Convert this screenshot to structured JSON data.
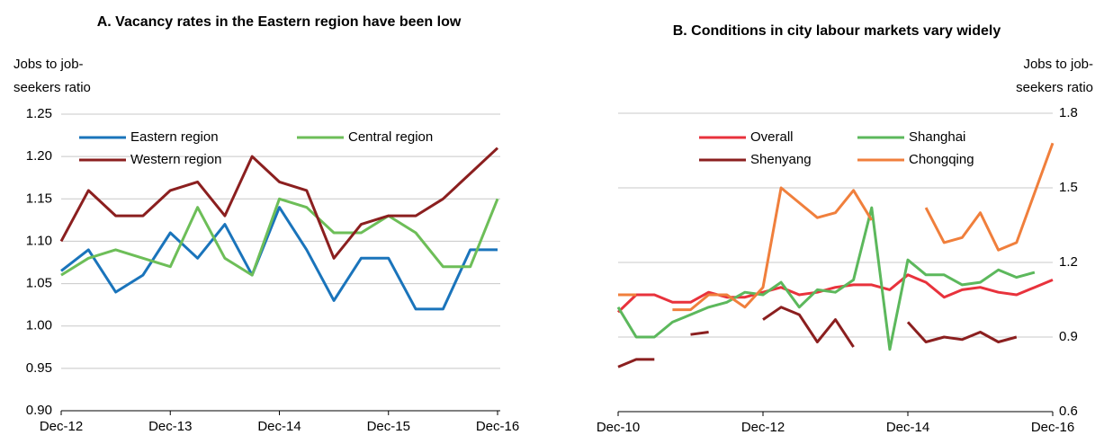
{
  "chart_data": [
    {
      "type": "line",
      "title": "A. Vacancy rates in the Eastern region have been low",
      "y_label": [
        "Jobs to job-",
        "seekers ratio"
      ],
      "y_axis_side": "left",
      "legend": "top-left",
      "grid": true,
      "categories": [
        "Dec-12",
        null,
        null,
        null,
        "Dec-13",
        null,
        null,
        null,
        "Dec-14",
        null,
        null,
        null,
        "Dec-15",
        null,
        null,
        null,
        "Dec-16"
      ],
      "ylim": [
        0.9,
        1.25
      ],
      "yticks": [
        {
          "value": 0.9,
          "label": "0.90"
        },
        0.95,
        {
          "value": 1.0,
          "label": "1.00"
        },
        1.05,
        {
          "value": 1.1,
          "label": "1.10"
        },
        1.15,
        {
          "value": 1.2,
          "label": "1.20"
        },
        1.25
      ],
      "series": [
        {
          "name": "Eastern region",
          "color": "#1a74bb",
          "values": [
            1.065,
            1.09,
            1.04,
            1.06,
            1.11,
            1.08,
            1.12,
            1.06,
            1.14,
            1.09,
            1.03,
            1.08,
            1.08,
            1.02,
            1.02,
            1.09,
            1.09
          ]
        },
        {
          "name": "Central region",
          "color": "#6dbe58",
          "values": [
            1.06,
            1.08,
            1.09,
            1.08,
            1.07,
            1.14,
            1.08,
            1.06,
            1.15,
            1.14,
            1.11,
            1.11,
            1.13,
            1.11,
            1.07,
            1.07,
            1.15
          ]
        },
        {
          "name": "Western region",
          "color": "#8b1f1f",
          "values": [
            1.1,
            1.16,
            1.13,
            1.13,
            1.16,
            1.17,
            1.13,
            1.2,
            1.17,
            1.16,
            1.08,
            1.12,
            1.13,
            1.13,
            1.15,
            1.18,
            1.21
          ]
        }
      ]
    },
    {
      "type": "line",
      "title": "B. Conditions in city labour markets vary widely",
      "y_label": [
        "Jobs to job-",
        "seekers ratio"
      ],
      "y_axis_side": "right",
      "legend": "top-left",
      "grid": true,
      "categories": [
        "Dec-10",
        null,
        null,
        null,
        null,
        null,
        null,
        null,
        "Dec-12",
        null,
        null,
        null,
        null,
        null,
        null,
        null,
        "Dec-14",
        null,
        null,
        null,
        null,
        null,
        null,
        null,
        "Dec-16"
      ],
      "ylim": [
        0.6,
        1.8
      ],
      "yticks": [
        0.6,
        0.9,
        1.2,
        1.5,
        1.8
      ],
      "series": [
        {
          "name": "Overall",
          "color": "#e8323c",
          "values": [
            1.0,
            1.07,
            1.07,
            1.04,
            1.04,
            1.08,
            1.06,
            1.06,
            1.08,
            1.1,
            1.07,
            1.08,
            1.1,
            1.11,
            1.11,
            1.09,
            1.15,
            1.12,
            1.06,
            1.09,
            1.1,
            1.08,
            1.07,
            1.1,
            1.13
          ]
        },
        {
          "name": "Shanghai",
          "color": "#5cb85c",
          "values": [
            1.02,
            0.9,
            0.9,
            0.96,
            0.99,
            1.02,
            1.04,
            1.08,
            1.07,
            1.12,
            1.02,
            1.09,
            1.08,
            1.13,
            1.42,
            0.85,
            1.21,
            1.15,
            1.15,
            1.11,
            1.12,
            1.17,
            1.14,
            1.16,
            null
          ]
        },
        {
          "name": "Shenyang",
          "color": "#8b1f1f",
          "values": [
            0.78,
            0.81,
            0.81,
            null,
            0.91,
            0.92,
            null,
            null,
            0.97,
            1.02,
            0.99,
            0.88,
            0.97,
            0.86,
            null,
            null,
            0.96,
            0.88,
            0.9,
            0.89,
            0.92,
            0.88,
            0.9,
            null,
            null
          ]
        },
        {
          "name": "Chongqing",
          "color": "#f07f3c",
          "values": [
            1.07,
            1.07,
            null,
            1.01,
            1.01,
            1.07,
            1.07,
            1.02,
            1.1,
            1.5,
            1.44,
            1.38,
            1.4,
            1.49,
            1.37,
            null,
            null,
            1.42,
            1.28,
            1.3,
            1.4,
            1.25,
            1.28,
            1.48,
            1.68
          ]
        }
      ]
    }
  ]
}
